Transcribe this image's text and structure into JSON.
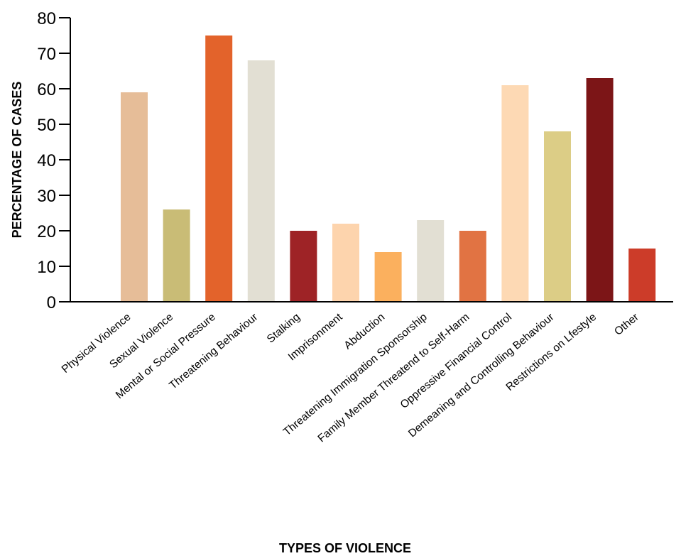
{
  "chart_data": {
    "type": "bar",
    "title": "",
    "xlabel": "TYPES OF VIOLENCE",
    "ylabel": "PERCENTAGE OF CASES",
    "ylim": [
      0,
      80
    ],
    "yticks": [
      0,
      10,
      20,
      30,
      40,
      50,
      60,
      70,
      80
    ],
    "ytick_labels": [
      "0",
      "10",
      "20",
      "30",
      "40",
      "50",
      "60",
      "70",
      "80"
    ],
    "grid": false,
    "legend": "none",
    "categories": [
      "Physical Violence",
      "Sexual Violence",
      "Mental or Social Pressure",
      "Threatening Behaviour",
      "Stalking",
      "Imprisonment",
      "Abduction",
      "Threatening Immigration Sponsorship",
      "Family Member Threatend to Self-Harm",
      "Oppressive Financial Control",
      "Demeaning and Controlling Behaviour",
      "Restrictions on Lfestyle",
      "Other"
    ],
    "values": [
      59,
      26,
      75,
      68,
      20,
      22,
      14,
      23,
      20,
      61,
      48,
      63,
      15
    ],
    "colors": [
      "#e6bd98",
      "#c9bc76",
      "#e3632b",
      "#e2dfd3",
      "#9e2326",
      "#fdd4ad",
      "#fbb05e",
      "#e2dfd3",
      "#e17343",
      "#fdd9b4",
      "#dccd86",
      "#7c1517",
      "#cc3c29"
    ]
  }
}
